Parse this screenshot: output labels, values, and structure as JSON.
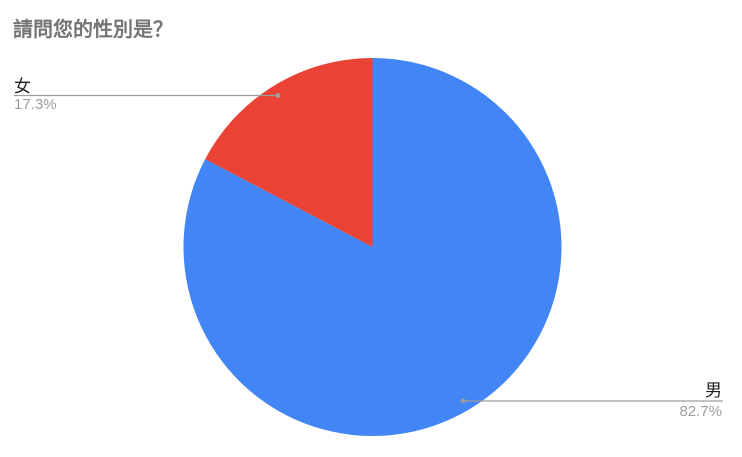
{
  "page": {
    "background_color": "#ffffff"
  },
  "chart_data": {
    "type": "pie",
    "title": "請問您的性別是？",
    "categories": [
      "男",
      "女"
    ],
    "values": [
      82.7,
      17.3
    ],
    "value_labels": [
      "82.7%",
      "17.3%"
    ],
    "colors": [
      "#4285F4",
      "#EA4335"
    ],
    "start_angle": 0,
    "direction": "clockwise",
    "legend_position": "none",
    "title_color": "#757575",
    "label_color": "#212121",
    "value_label_color": "#9e9e9e",
    "callout_line_color": "#9e9e9e"
  }
}
